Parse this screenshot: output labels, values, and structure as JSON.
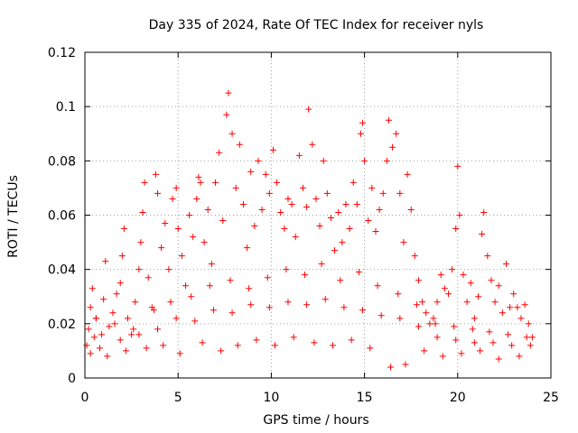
{
  "chart_data": {
    "type": "scatter",
    "title": "Day 335 of 2024, Rate Of TEC Index for receiver nyls",
    "xlabel": "GPS time / hours",
    "ylabel": "ROTI / TECUs",
    "xlim": [
      0,
      25
    ],
    "ylim": [
      0,
      0.12
    ],
    "x_ticks": [
      "0",
      "5",
      "10",
      "15",
      "20",
      "25"
    ],
    "y_ticks": [
      "0",
      "0.02",
      "0.04",
      "0.06",
      "0.08",
      "0.1",
      "0.12"
    ],
    "grid": true,
    "marker": "plus",
    "color": "#ff0000",
    "series": [
      {
        "points": [
          [
            0.1,
            0.012
          ],
          [
            0.2,
            0.018
          ],
          [
            0.3,
            0.026
          ],
          [
            0.4,
            0.033
          ],
          [
            0.5,
            0.015
          ],
          [
            0.6,
            0.022
          ],
          [
            0.8,
            0.011
          ],
          [
            1.0,
            0.029
          ],
          [
            1.1,
            0.043
          ],
          [
            1.3,
            0.019
          ],
          [
            1.5,
            0.024
          ],
          [
            1.7,
            0.031
          ],
          [
            1.9,
            0.035
          ],
          [
            2.0,
            0.045
          ],
          [
            2.1,
            0.055
          ],
          [
            2.3,
            0.022
          ],
          [
            2.5,
            0.016
          ],
          [
            2.7,
            0.028
          ],
          [
            2.9,
            0.04
          ],
          [
            3.0,
            0.05
          ],
          [
            3.1,
            0.061
          ],
          [
            3.2,
            0.072
          ],
          [
            3.4,
            0.037
          ],
          [
            3.6,
            0.026
          ],
          [
            3.8,
            0.075
          ],
          [
            3.9,
            0.068
          ],
          [
            4.1,
            0.048
          ],
          [
            4.3,
            0.057
          ],
          [
            4.5,
            0.04
          ],
          [
            4.7,
            0.066
          ],
          [
            4.9,
            0.07
          ],
          [
            5.0,
            0.055
          ],
          [
            5.2,
            0.045
          ],
          [
            5.4,
            0.034
          ],
          [
            5.6,
            0.06
          ],
          [
            5.8,
            0.052
          ],
          [
            6.0,
            0.066
          ],
          [
            6.1,
            0.074
          ],
          [
            6.2,
            0.072
          ],
          [
            6.4,
            0.05
          ],
          [
            6.6,
            0.062
          ],
          [
            6.8,
            0.042
          ],
          [
            7.0,
            0.072
          ],
          [
            7.2,
            0.083
          ],
          [
            7.4,
            0.058
          ],
          [
            7.6,
            0.097
          ],
          [
            7.7,
            0.105
          ],
          [
            7.9,
            0.09
          ],
          [
            8.1,
            0.07
          ],
          [
            8.3,
            0.086
          ],
          [
            8.5,
            0.064
          ],
          [
            8.7,
            0.048
          ],
          [
            8.9,
            0.076
          ],
          [
            9.1,
            0.056
          ],
          [
            9.3,
            0.08
          ],
          [
            9.5,
            0.062
          ],
          [
            9.7,
            0.075
          ],
          [
            9.9,
            0.068
          ],
          [
            10.1,
            0.084
          ],
          [
            10.3,
            0.072
          ],
          [
            10.5,
            0.061
          ],
          [
            10.7,
            0.055
          ],
          [
            10.9,
            0.066
          ],
          [
            11.1,
            0.064
          ],
          [
            11.3,
            0.052
          ],
          [
            11.5,
            0.082
          ],
          [
            11.7,
            0.07
          ],
          [
            11.9,
            0.063
          ],
          [
            12.0,
            0.099
          ],
          [
            12.2,
            0.086
          ],
          [
            12.4,
            0.066
          ],
          [
            12.6,
            0.056
          ],
          [
            12.8,
            0.08
          ],
          [
            13.0,
            0.068
          ],
          [
            13.2,
            0.059
          ],
          [
            13.4,
            0.047
          ],
          [
            13.6,
            0.061
          ],
          [
            13.8,
            0.05
          ],
          [
            14.0,
            0.064
          ],
          [
            14.2,
            0.055
          ],
          [
            14.4,
            0.072
          ],
          [
            14.6,
            0.064
          ],
          [
            14.8,
            0.09
          ],
          [
            14.9,
            0.094
          ],
          [
            15.0,
            0.08
          ],
          [
            15.2,
            0.058
          ],
          [
            15.4,
            0.07
          ],
          [
            15.6,
            0.054
          ],
          [
            15.8,
            0.062
          ],
          [
            16.0,
            0.068
          ],
          [
            16.2,
            0.08
          ],
          [
            16.3,
            0.095
          ],
          [
            16.5,
            0.085
          ],
          [
            16.7,
            0.09
          ],
          [
            16.9,
            0.068
          ],
          [
            17.1,
            0.05
          ],
          [
            17.3,
            0.075
          ],
          [
            17.5,
            0.062
          ],
          [
            17.7,
            0.045
          ],
          [
            17.9,
            0.036
          ],
          [
            18.1,
            0.028
          ],
          [
            18.3,
            0.024
          ],
          [
            18.5,
            0.02
          ],
          [
            18.7,
            0.022
          ],
          [
            18.9,
            0.028
          ],
          [
            19.1,
            0.038
          ],
          [
            19.3,
            0.033
          ],
          [
            19.5,
            0.031
          ],
          [
            19.7,
            0.04
          ],
          [
            19.9,
            0.055
          ],
          [
            20.0,
            0.078
          ],
          [
            20.1,
            0.06
          ],
          [
            20.3,
            0.038
          ],
          [
            20.5,
            0.028
          ],
          [
            20.7,
            0.035
          ],
          [
            20.9,
            0.022
          ],
          [
            21.1,
            0.03
          ],
          [
            21.3,
            0.053
          ],
          [
            21.4,
            0.061
          ],
          [
            21.6,
            0.045
          ],
          [
            21.8,
            0.036
          ],
          [
            22.0,
            0.028
          ],
          [
            22.2,
            0.034
          ],
          [
            22.4,
            0.024
          ],
          [
            22.6,
            0.042
          ],
          [
            22.8,
            0.026
          ],
          [
            23.0,
            0.031
          ],
          [
            23.2,
            0.026
          ],
          [
            23.4,
            0.022
          ],
          [
            23.6,
            0.027
          ],
          [
            23.8,
            0.02
          ],
          [
            24.0,
            0.015
          ],
          [
            0.3,
            0.009
          ],
          [
            1.2,
            0.008
          ],
          [
            2.2,
            0.01
          ],
          [
            3.3,
            0.011
          ],
          [
            4.2,
            0.012
          ],
          [
            5.1,
            0.009
          ],
          [
            6.3,
            0.013
          ],
          [
            7.3,
            0.01
          ],
          [
            8.2,
            0.012
          ],
          [
            9.2,
            0.014
          ],
          [
            10.2,
            0.012
          ],
          [
            11.2,
            0.015
          ],
          [
            12.3,
            0.013
          ],
          [
            13.3,
            0.012
          ],
          [
            14.3,
            0.014
          ],
          [
            15.3,
            0.011
          ],
          [
            16.4,
            0.004
          ],
          [
            17.2,
            0.005
          ],
          [
            18.2,
            0.01
          ],
          [
            19.2,
            0.008
          ],
          [
            20.2,
            0.009
          ],
          [
            21.2,
            0.01
          ],
          [
            22.2,
            0.007
          ],
          [
            23.3,
            0.008
          ],
          [
            0.6,
            0.022
          ],
          [
            1.6,
            0.02
          ],
          [
            2.6,
            0.018
          ],
          [
            3.7,
            0.025
          ],
          [
            4.6,
            0.028
          ],
          [
            5.7,
            0.03
          ],
          [
            6.7,
            0.034
          ],
          [
            7.8,
            0.036
          ],
          [
            8.8,
            0.033
          ],
          [
            9.8,
            0.037
          ],
          [
            10.8,
            0.04
          ],
          [
            11.8,
            0.038
          ],
          [
            12.7,
            0.042
          ],
          [
            13.7,
            0.036
          ],
          [
            14.7,
            0.039
          ],
          [
            15.7,
            0.034
          ],
          [
            16.8,
            0.031
          ],
          [
            17.8,
            0.027
          ],
          [
            18.8,
            0.02
          ],
          [
            19.8,
            0.019
          ],
          [
            20.8,
            0.018
          ],
          [
            21.7,
            0.017
          ],
          [
            22.7,
            0.016
          ],
          [
            23.7,
            0.015
          ],
          [
            0.9,
            0.016
          ],
          [
            1.9,
            0.014
          ],
          [
            2.9,
            0.016
          ],
          [
            3.9,
            0.018
          ],
          [
            4.9,
            0.022
          ],
          [
            5.9,
            0.021
          ],
          [
            6.9,
            0.025
          ],
          [
            7.9,
            0.024
          ],
          [
            8.9,
            0.027
          ],
          [
            9.9,
            0.026
          ],
          [
            10.9,
            0.028
          ],
          [
            11.9,
            0.027
          ],
          [
            12.9,
            0.029
          ],
          [
            13.9,
            0.026
          ],
          [
            14.9,
            0.025
          ],
          [
            15.9,
            0.023
          ],
          [
            16.9,
            0.022
          ],
          [
            17.9,
            0.019
          ],
          [
            18.9,
            0.015
          ],
          [
            19.9,
            0.014
          ],
          [
            20.9,
            0.013
          ],
          [
            21.9,
            0.013
          ],
          [
            22.9,
            0.012
          ],
          [
            23.9,
            0.012
          ]
        ]
      }
    ]
  }
}
